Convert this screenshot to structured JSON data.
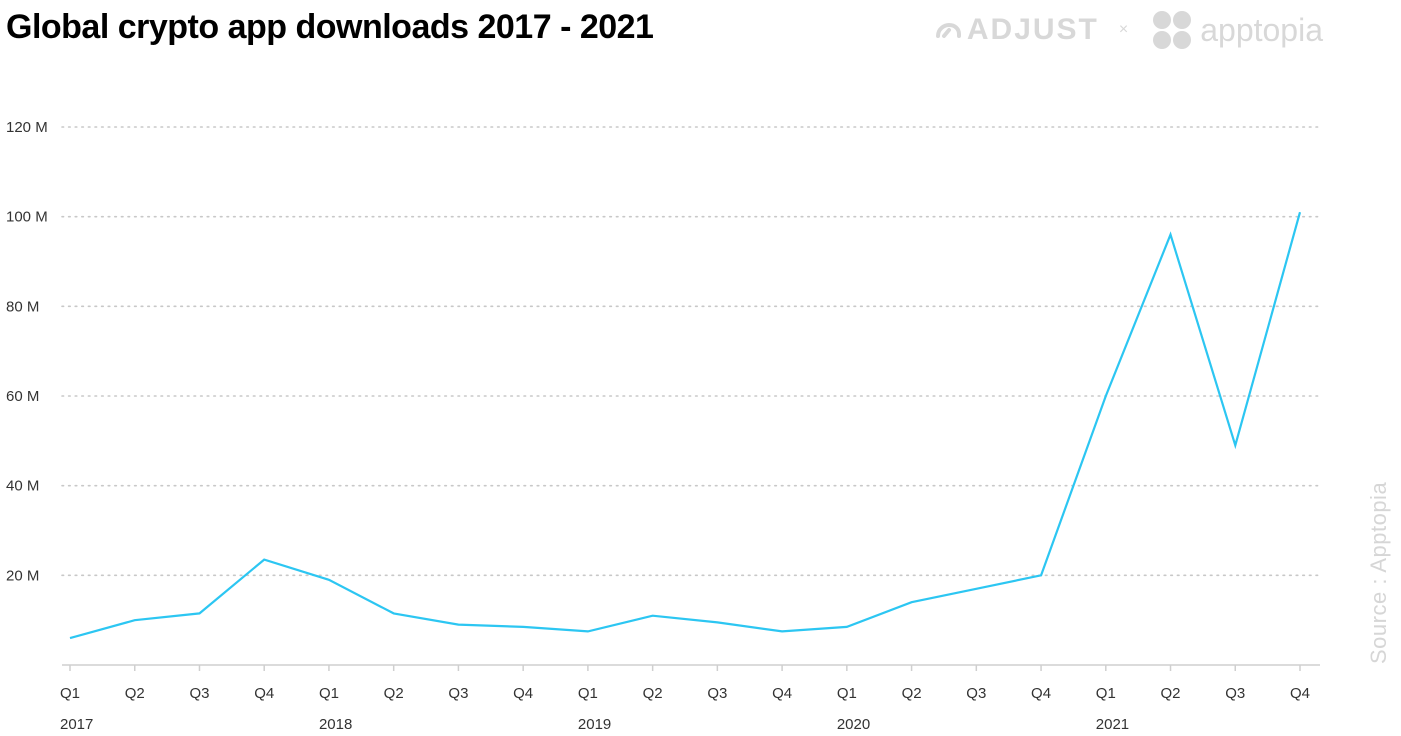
{
  "header": {
    "title": "Global crypto app downloads 2017 - 2021",
    "logo_adjust": "ADJUST",
    "logo_separator": "×",
    "logo_apptopia": "apptopia"
  },
  "source": "Source : Apptopia",
  "colors": {
    "line": "#2cc6f2",
    "grid": "#c8c8c8",
    "axis": "#cfcfcf",
    "logo": "#d8d8d8"
  },
  "chart_data": {
    "type": "line",
    "title": "Global crypto app downloads 2017 - 2021",
    "xlabel": "",
    "ylabel": "",
    "ylim": [
      0,
      120
    ],
    "y_unit": "M",
    "y_ticks": [
      "20 M",
      "40 M",
      "60 M",
      "80 M",
      "100 M",
      "120 M"
    ],
    "y_tick_values": [
      20,
      40,
      60,
      80,
      100,
      120
    ],
    "grid": true,
    "categories": [
      "Q1",
      "Q2",
      "Q3",
      "Q4",
      "Q1",
      "Q2",
      "Q3",
      "Q4",
      "Q1",
      "Q2",
      "Q3",
      "Q4",
      "Q1",
      "Q2",
      "Q3",
      "Q4",
      "Q1",
      "Q2",
      "Q3",
      "Q4"
    ],
    "years": [
      {
        "label": "2017",
        "start_index": 0
      },
      {
        "label": "2018",
        "start_index": 4
      },
      {
        "label": "2019",
        "start_index": 8
      },
      {
        "label": "2020",
        "start_index": 12
      },
      {
        "label": "2021",
        "start_index": 16
      }
    ],
    "series": [
      {
        "values": [
          6,
          10,
          11.5,
          23.5,
          19,
          11.5,
          9,
          8.5,
          7.5,
          11,
          9.5,
          7.5,
          8.5,
          14,
          17,
          20,
          60,
          96,
          49,
          101
        ]
      }
    ]
  }
}
